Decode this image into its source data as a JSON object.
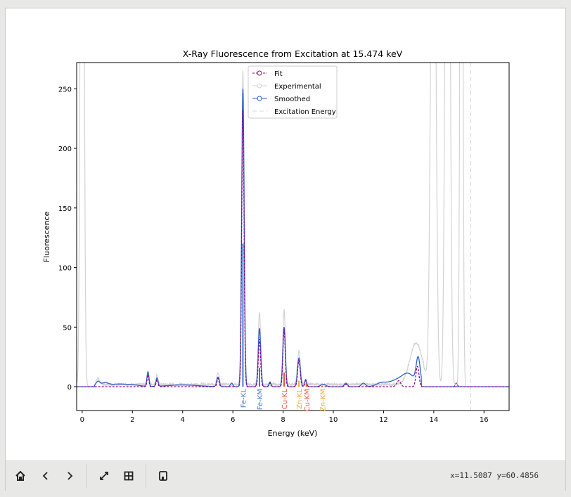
{
  "toolbar": {
    "buttons": [
      "home",
      "back",
      "forward",
      "pan",
      "zoom",
      "save"
    ],
    "coords": "x=11.5087 y=60.4856"
  },
  "chart_data": {
    "type": "line",
    "title": "X-Ray Fluorescence from Excitation at 15.474 keV",
    "xlabel": "Energy (keV)",
    "ylabel": "Fluorescence",
    "xlim": [
      -0.22,
      17.0
    ],
    "ylim": [
      -20,
      272
    ],
    "xticks": [
      0,
      2,
      4,
      6,
      8,
      10,
      12,
      14,
      16
    ],
    "yticks": [
      0,
      50,
      100,
      150,
      200,
      250
    ],
    "legend": {
      "placement": "top-center",
      "entries": [
        "Fit",
        "Experimental",
        "Smoothed",
        "Excitation Energy"
      ]
    },
    "colors": {
      "fit": "#8b008b",
      "experimental": "#d3d3d3",
      "smoothed": "#3060d0",
      "excitation": "#d8d8d8"
    },
    "excitation_energy": 15.474,
    "series": [
      {
        "name": "Smoothed",
        "peaks": [
          [
            0.62,
            4,
            0.08
          ],
          [
            0.9,
            3,
            0.15
          ],
          [
            1.4,
            2,
            0.3
          ],
          [
            2.0,
            1.5,
            0.3
          ],
          [
            2.62,
            12,
            0.04
          ],
          [
            2.98,
            7,
            0.04
          ],
          [
            4.0,
            1.5,
            0.6
          ],
          [
            5.41,
            8,
            0.05
          ],
          [
            5.95,
            3,
            0.05
          ],
          [
            6.4,
            250,
            0.048
          ],
          [
            7.06,
            49,
            0.05
          ],
          [
            7.48,
            4,
            0.04
          ],
          [
            8.04,
            50,
            0.05
          ],
          [
            8.63,
            24,
            0.055
          ],
          [
            8.9,
            6,
            0.04
          ],
          [
            9.6,
            2,
            0.1
          ],
          [
            10.5,
            3,
            0.06
          ],
          [
            11.2,
            3,
            0.08
          ],
          [
            11.9,
            3,
            0.2
          ],
          [
            12.5,
            5,
            0.3
          ],
          [
            13.0,
            10,
            0.25
          ],
          [
            13.38,
            22,
            0.08
          ]
        ],
        "cutoff": 13.5
      },
      {
        "name": "Fit",
        "peaks": [
          [
            2.62,
            10,
            0.035
          ],
          [
            2.98,
            6,
            0.035
          ],
          [
            5.41,
            7,
            0.04
          ],
          [
            6.4,
            232,
            0.045
          ],
          [
            7.06,
            40,
            0.045
          ],
          [
            7.48,
            3,
            0.04
          ],
          [
            8.04,
            48,
            0.045
          ],
          [
            8.63,
            22,
            0.05
          ],
          [
            8.9,
            5,
            0.04
          ],
          [
            10.5,
            2,
            0.05
          ],
          [
            12.6,
            5,
            0.08
          ],
          [
            13.35,
            17,
            0.06
          ],
          [
            14.9,
            3,
            0.04
          ]
        ]
      },
      {
        "name": "Experimental",
        "peaks": [
          [
            0.0,
            900,
            0.06
          ],
          [
            0.62,
            5,
            0.08
          ],
          [
            2.62,
            12,
            0.04
          ],
          [
            2.98,
            8,
            0.04
          ],
          [
            5.41,
            10,
            0.05
          ],
          [
            6.4,
            262,
            0.05
          ],
          [
            7.06,
            60,
            0.05
          ],
          [
            8.04,
            62,
            0.05
          ],
          [
            8.63,
            28,
            0.06
          ],
          [
            13.3,
            35,
            0.25
          ],
          [
            13.98,
            600,
            0.09
          ],
          [
            14.55,
            800,
            0.08
          ],
          [
            15.1,
            700,
            0.05
          ]
        ],
        "noise": 3
      }
    ],
    "line_markers": [
      {
        "label": "Fe-KL",
        "energy": 6.4,
        "intensity": 120,
        "color": "#4a78c8"
      },
      {
        "label": "Fe-KM",
        "energy": 7.06,
        "intensity": 16,
        "color": "#4a78c8"
      },
      {
        "label": "Cu-KL",
        "energy": 8.04,
        "intensity": 12,
        "color": "#e05a3a"
      },
      {
        "label": "Zn-KL",
        "energy": 8.63,
        "intensity": 5,
        "color": "#f5a623"
      },
      {
        "label": "Cu-KM",
        "energy": 8.93,
        "intensity": 2,
        "color": "#e05a3a"
      },
      {
        "label": "Zn-KM",
        "energy": 9.57,
        "intensity": 1,
        "color": "#f5a623"
      }
    ]
  }
}
